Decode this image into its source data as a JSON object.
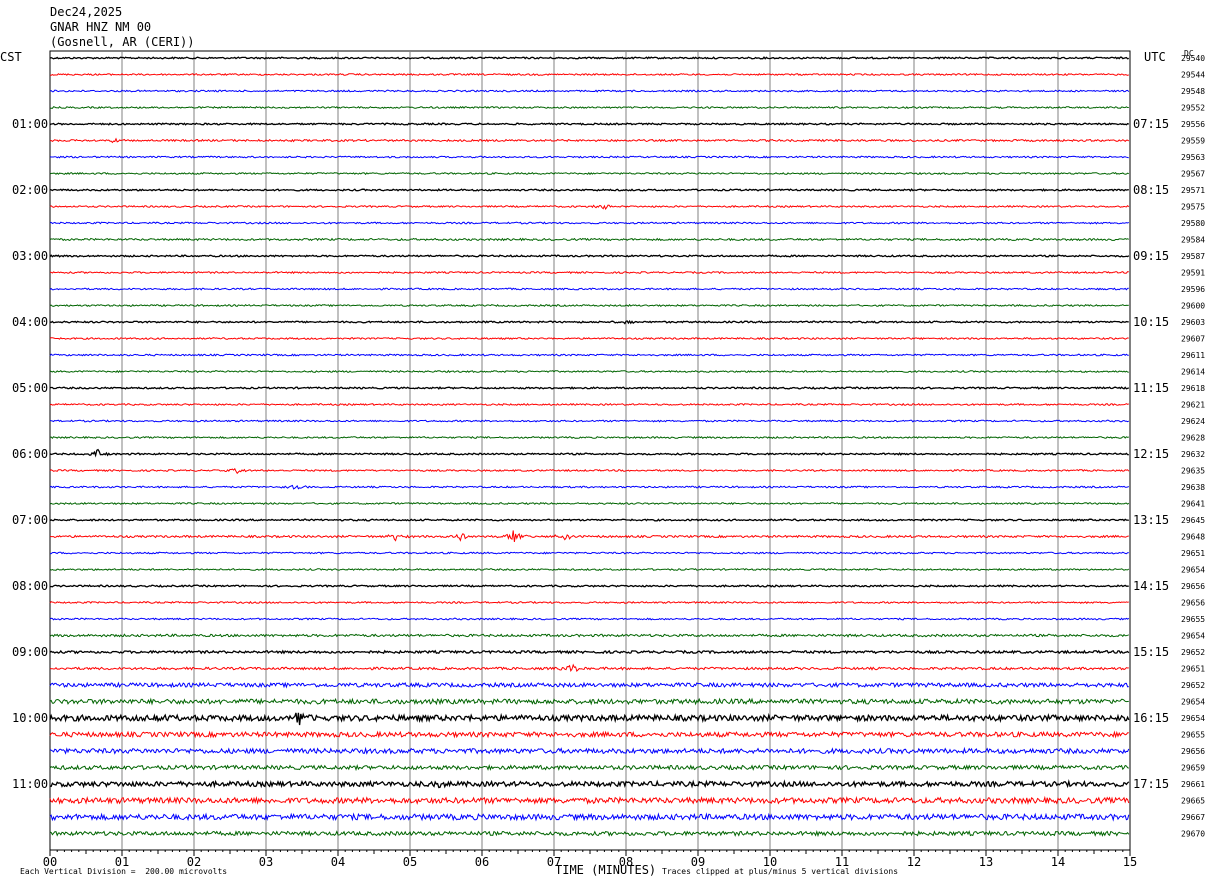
{
  "header": {
    "date": "Dec24,2025",
    "station": "GNAR HNZ NM 00",
    "location": "(Gosnell, AR (CERI))"
  },
  "left_zone_label": "CST",
  "right_zone_label": "UTC",
  "dc_label": "DC",
  "footer": {
    "x_axis_title": "TIME (MINUTES)",
    "vertical_division": "Each Vertical Division =  200.00 microvolts",
    "clipping_note": "Traces clipped at plus/minus 5 vertical divisions"
  },
  "colors": {
    "trace_cycle": [
      "#000000",
      "#ff0000",
      "#0000ff",
      "#006400"
    ],
    "grid": "#808080"
  },
  "chart_data": {
    "type": "line",
    "title": "GNAR HNZ NM 00",
    "xlabel": "TIME (MINUTES)",
    "xlim": [
      0,
      15
    ],
    "x_ticks": [
      "00",
      "01",
      "02",
      "03",
      "04",
      "05",
      "06",
      "07",
      "08",
      "09",
      "10",
      "11",
      "12",
      "13",
      "14",
      "15"
    ],
    "row_minutes": 15,
    "left_time_labels": [
      {
        "row": 4,
        "label": "01:00"
      },
      {
        "row": 8,
        "label": "02:00"
      },
      {
        "row": 12,
        "label": "03:00"
      },
      {
        "row": 16,
        "label": "04:00"
      },
      {
        "row": 20,
        "label": "05:00"
      },
      {
        "row": 24,
        "label": "06:00"
      },
      {
        "row": 28,
        "label": "07:00"
      },
      {
        "row": 32,
        "label": "08:00"
      },
      {
        "row": 36,
        "label": "09:00"
      },
      {
        "row": 40,
        "label": "10:00"
      },
      {
        "row": 44,
        "label": "11:00"
      }
    ],
    "right_time_labels": [
      {
        "row": 4,
        "label": "07:15"
      },
      {
        "row": 8,
        "label": "08:15"
      },
      {
        "row": 12,
        "label": "09:15"
      },
      {
        "row": 16,
        "label": "10:15"
      },
      {
        "row": 20,
        "label": "11:15"
      },
      {
        "row": 24,
        "label": "12:15"
      },
      {
        "row": 28,
        "label": "13:15"
      },
      {
        "row": 32,
        "label": "14:15"
      },
      {
        "row": 36,
        "label": "15:15"
      },
      {
        "row": 40,
        "label": "16:15"
      },
      {
        "row": 44,
        "label": "17:15"
      }
    ],
    "dc_offsets": [
      "29540",
      "29544",
      "29548",
      "29552",
      "29556",
      "29559",
      "29563",
      "29567",
      "29571",
      "29575",
      "29580",
      "29584",
      "29587",
      "29591",
      "29596",
      "29600",
      "29603",
      "29607",
      "29611",
      "29614",
      "29618",
      "29621",
      "29624",
      "29628",
      "29632",
      "29635",
      "29638",
      "29641",
      "29645",
      "29648",
      "29651",
      "29654",
      "29656",
      "29656",
      "29655",
      "29654",
      "29652",
      "29651",
      "29652",
      "29654",
      "29654",
      "29655",
      "29656",
      "29659",
      "29661",
      "29665",
      "29667",
      "29670"
    ],
    "noise_level": [
      1,
      1,
      1,
      1,
      1,
      1.2,
      1,
      1,
      1,
      1,
      1,
      1.2,
      1,
      1,
      1,
      1,
      1,
      1,
      1,
      1,
      1,
      1,
      1,
      1,
      1,
      1,
      1,
      1,
      1,
      1.3,
      1,
      1,
      1,
      1,
      1,
      1.5,
      1.5,
      1.5,
      2.5,
      3,
      3.5,
      3,
      3,
      2.5,
      3,
      3.5,
      3.5,
      2.5
    ],
    "events": [
      {
        "row": 5,
        "minute": 0.9,
        "amp": 2
      },
      {
        "row": 9,
        "minute": 7.7,
        "amp": 3
      },
      {
        "row": 16,
        "minute": 8.0,
        "amp": 2
      },
      {
        "row": 24,
        "minute": 0.65,
        "amp": 5
      },
      {
        "row": 25,
        "minute": 2.6,
        "amp": 3
      },
      {
        "row": 26,
        "minute": 3.4,
        "amp": 4
      },
      {
        "row": 29,
        "minute": 4.8,
        "amp": 5
      },
      {
        "row": 29,
        "minute": 5.7,
        "amp": 6
      },
      {
        "row": 29,
        "minute": 6.45,
        "amp": 7
      },
      {
        "row": 29,
        "minute": 7.15,
        "amp": 4
      },
      {
        "row": 37,
        "minute": 7.25,
        "amp": 5
      },
      {
        "row": 40,
        "minute": 1.5,
        "amp": 5
      },
      {
        "row": 40,
        "minute": 3.45,
        "amp": 8
      },
      {
        "row": 44,
        "minute": 5.4,
        "amp": 4
      }
    ]
  }
}
